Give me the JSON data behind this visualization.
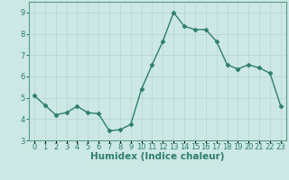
{
  "x": [
    0,
    1,
    2,
    3,
    4,
    5,
    6,
    7,
    8,
    9,
    10,
    11,
    12,
    13,
    14,
    15,
    16,
    17,
    18,
    19,
    20,
    21,
    22,
    23
  ],
  "y": [
    5.1,
    4.65,
    4.2,
    4.3,
    4.6,
    4.3,
    4.25,
    3.45,
    3.5,
    3.75,
    5.4,
    6.55,
    7.65,
    9.0,
    8.35,
    8.2,
    8.2,
    7.65,
    6.55,
    6.35,
    6.55,
    6.4,
    6.15,
    4.6
  ],
  "line_color": "#2e7d6e",
  "marker": "D",
  "marker_size": 2.5,
  "bg_color": "#cce8e4",
  "grid_color": "#b8d8d4",
  "xlabel": "Humidex (Indice chaleur)",
  "ylabel": "",
  "xlim": [
    -0.5,
    23.5
  ],
  "ylim": [
    3.0,
    9.5
  ],
  "yticks": [
    3,
    4,
    5,
    6,
    7,
    8,
    9
  ],
  "xtick_labels": [
    "0",
    "1",
    "2",
    "3",
    "4",
    "5",
    "6",
    "7",
    "8",
    "9",
    "10",
    "11",
    "12",
    "13",
    "14",
    "15",
    "16",
    "17",
    "18",
    "19",
    "20",
    "21",
    "22",
    "23"
  ],
  "xlabel_fontsize": 7.5,
  "tick_fontsize": 6.0,
  "line_width": 1.0,
  "spine_color": "#5a9a8a"
}
